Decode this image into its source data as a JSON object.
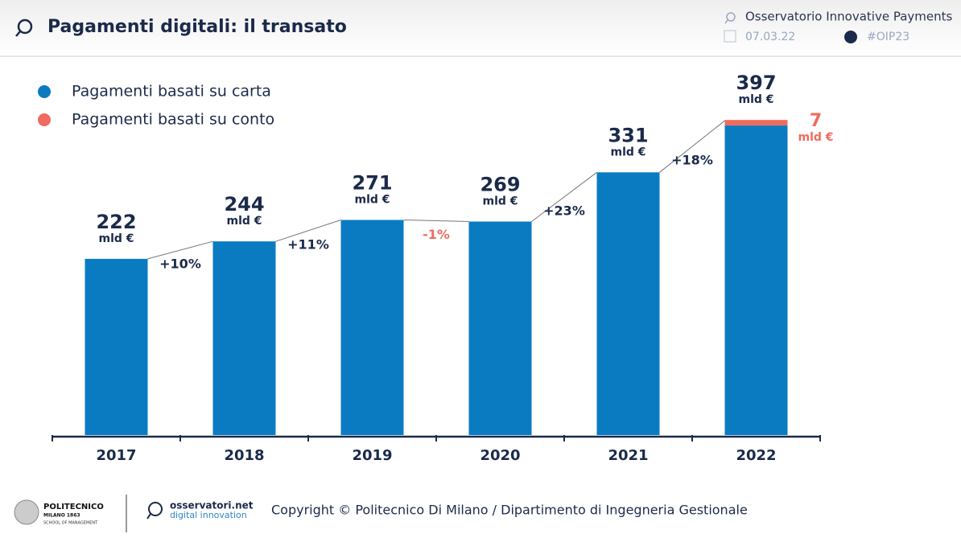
{
  "header": {
    "title": "Pagamenti digitali: il transato",
    "source": "Osservatorio Innovative Payments",
    "date": "07.03.22",
    "hashtag": "#OIP23"
  },
  "chart_data": {
    "type": "bar",
    "stacked": true,
    "categories": [
      "2017",
      "2018",
      "2019",
      "2020",
      "2021",
      "2022"
    ],
    "series": [
      {
        "name": "Pagamenti basati su carta",
        "color": "#0a7bc1",
        "values": [
          222,
          244,
          271,
          269,
          331,
          390
        ]
      },
      {
        "name": "Pagamenti basati su conto",
        "color": "#f06b5e",
        "values": [
          null,
          null,
          null,
          null,
          null,
          7
        ]
      }
    ],
    "totals": [
      222,
      244,
      271,
      269,
      331,
      397
    ],
    "unit": "mld €",
    "growth": [
      "+10%",
      "+11%",
      "-1%",
      "+23%",
      "+18%"
    ]
  },
  "footer": {
    "school": "POLITECNICO",
    "city": "MILANO 1863",
    "school_sub": "SCHOOL OF MANAGEMENT",
    "brand": "osservatori.net",
    "brand_sub": "digital innovation",
    "copyright": "Copyright © Politecnico Di Milano / Dipartimento di Ingegneria Gestionale"
  }
}
